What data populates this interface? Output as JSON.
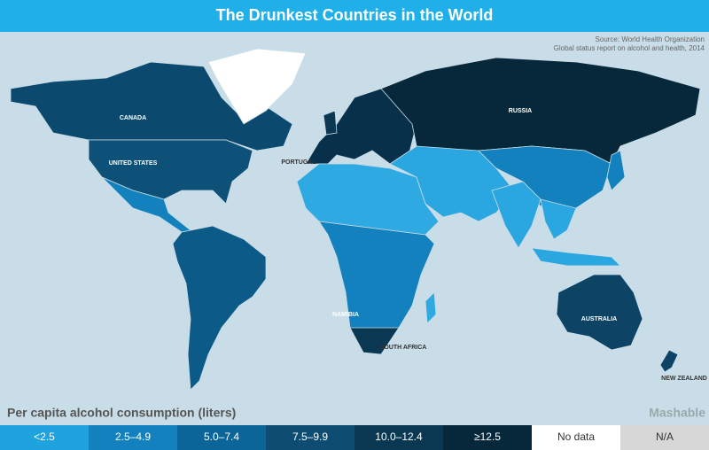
{
  "title": "The Drunkest Countries in the World",
  "source": [
    "Source: World Health Organization",
    "Global status report on alcohol and health, 2014"
  ],
  "map_labels": [
    "CANADA",
    "UNITED STATES",
    "PORTUGAL",
    "RUSSIA",
    "NAMIBIA",
    "SOUTH AFRICA",
    "AUSTRALIA",
    "NEW ZEALAND"
  ],
  "legend": {
    "title": "Per capita alcohol consumption (liters)",
    "items": [
      {
        "label": "<2.5",
        "color": "#1ea3de"
      },
      {
        "label": "2.5–4.9",
        "color": "#1281bd"
      },
      {
        "label": "5.0–7.4",
        "color": "#0c6598"
      },
      {
        "label": "7.5–9.9",
        "color": "#0d4d72"
      },
      {
        "label": "10.0–12.4",
        "color": "#0a3852"
      },
      {
        "label": "≥12.5",
        "color": "#07283a"
      },
      {
        "label": "No data",
        "color": "#ffffff"
      },
      {
        "label": "N/A",
        "color": "#d7d7d7"
      }
    ]
  },
  "brand": "Mashable"
}
